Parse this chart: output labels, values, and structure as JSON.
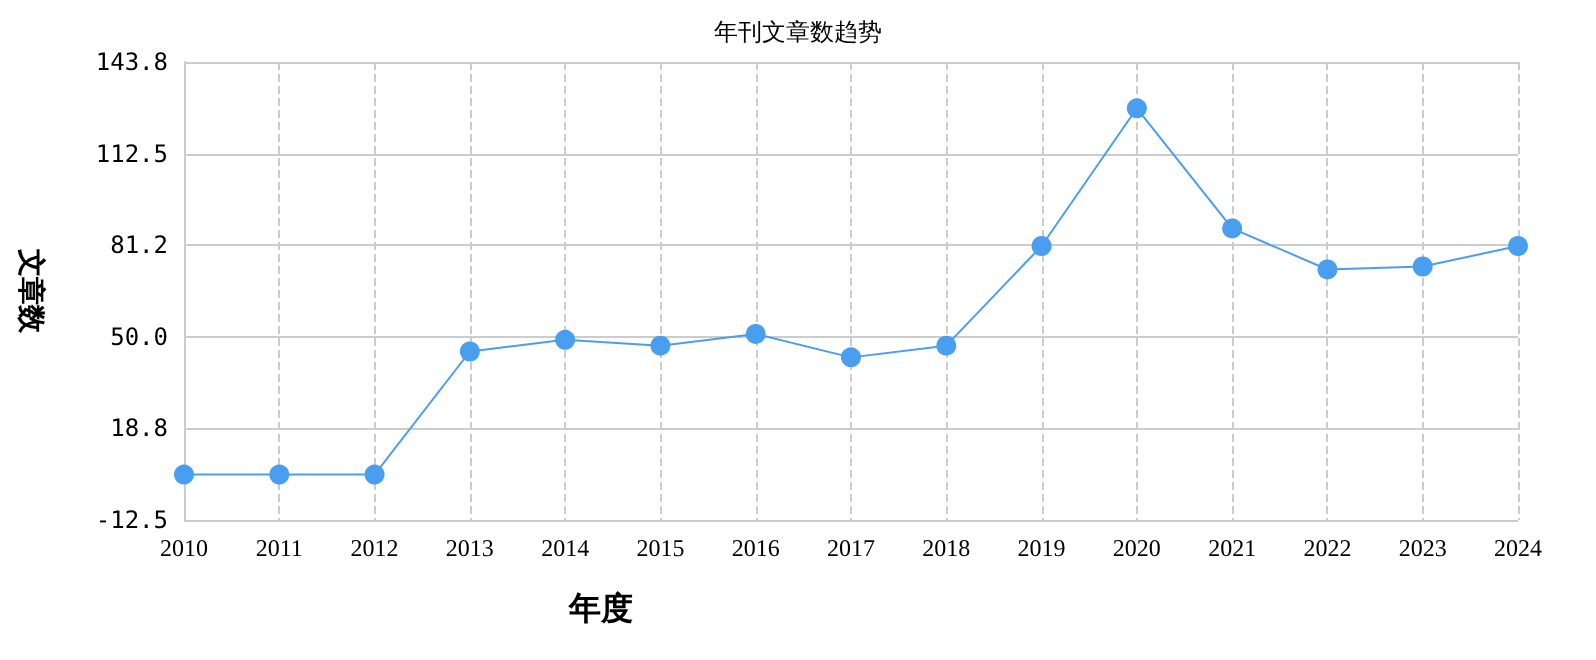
{
  "chart_data": {
    "type": "line",
    "title": "年刊文章数趋势",
    "xlabel": "年度",
    "ylabel": "文章数",
    "categories": [
      "2010",
      "2011",
      "2012",
      "2013",
      "2014",
      "2015",
      "2016",
      "2017",
      "2018",
      "2019",
      "2020",
      "2021",
      "2022",
      "2023",
      "2024"
    ],
    "series": [
      {
        "color": "#4a9ef0",
        "values": [
          3,
          3,
          3,
          45,
          49,
          47,
          51,
          43,
          47,
          81,
          128,
          87,
          73,
          74,
          81
        ]
      }
    ],
    "ylim": [
      -12.5,
      143.8
    ],
    "yticks": [
      {
        "value": -12.5,
        "label": "-12.5"
      },
      {
        "value": 18.8,
        "label": "18.8"
      },
      {
        "value": 50,
        "label": "50.0"
      },
      {
        "value": 81.2,
        "label": "81.2"
      },
      {
        "value": 112.5,
        "label": "112.5"
      },
      {
        "value": 143.8,
        "label": "143.8"
      }
    ],
    "grid": true,
    "marker": "circle",
    "line_style": "solid"
  }
}
